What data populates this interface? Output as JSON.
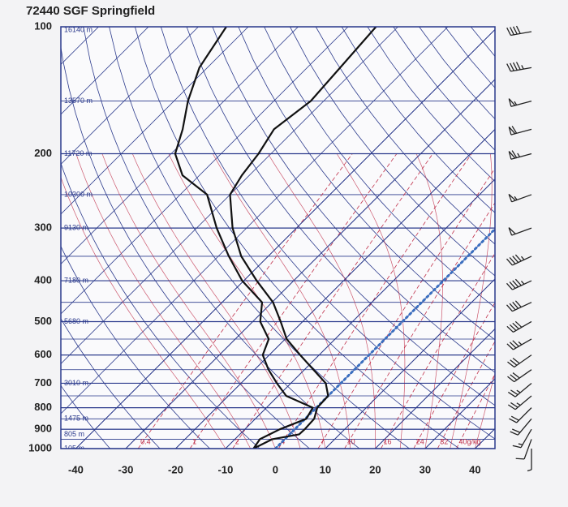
{
  "chart_data": {
    "type": "skewt",
    "title": "72440 SGF Springfield",
    "ylim": [
      1000,
      100
    ],
    "yticks": [
      100,
      200,
      300,
      400,
      500,
      600,
      700,
      800,
      900,
      1000
    ],
    "log_y": true,
    "xlim": [
      -43,
      44
    ],
    "xticks": [
      -40,
      -30,
      -20,
      -10,
      0,
      10,
      20,
      30,
      40
    ],
    "pressure": [
      1000,
      950,
      925,
      900,
      850,
      800,
      750,
      700,
      650,
      600,
      550,
      500,
      450,
      400,
      350,
      300,
      250,
      225,
      200,
      175,
      150,
      125,
      100
    ],
    "series": [
      {
        "name": "Temperature",
        "color": "#111111",
        "values": [
          -4.4,
          -2.5,
          1.9,
          2.0,
          1.8,
          0.2,
          0,
          -3,
          -8.2,
          -13.8,
          -19.7,
          -24.4,
          -29.8,
          -37.4,
          -45.4,
          -52.8,
          -60,
          -61.5,
          -62.5,
          -64.3,
          -62.6,
          -63.4,
          -64.4
        ]
      },
      {
        "name": "Dewpoint",
        "color": "#111111",
        "values": [
          -4.4,
          -5,
          -4,
          -3,
          0.2,
          -0.7,
          -8.4,
          -12.8,
          -17.2,
          -21.3,
          -23.3,
          -28.5,
          -32,
          -40.3,
          -47.9,
          -56,
          -64.6,
          -73.4,
          -79.2,
          -82.6,
          -87.2,
          -91.6,
          -94.4
        ]
      }
    ],
    "heights": {
      "pressure": [
        100,
        150,
        200,
        250,
        300,
        400,
        500,
        700,
        850,
        925,
        1000
      ],
      "labels": [
        "16140 m",
        "13570 m",
        "11720 m",
        "10300 m",
        "9130 m",
        "7180 m",
        "5680 m",
        "3010 m",
        "1475 m",
        "805 m",
        "105 m"
      ]
    },
    "mixing_ratio": {
      "values": [
        0.4,
        1,
        2,
        4,
        7,
        10,
        16,
        24,
        32,
        40
      ],
      "value_labels": [
        "0.4",
        "1",
        "2",
        "4",
        "7",
        "10",
        "16",
        "24",
        "32",
        "40g/kg"
      ],
      "color": "#c0304a"
    },
    "wind": {
      "pressure": [
        100,
        125,
        150,
        175,
        200,
        250,
        300,
        350,
        400,
        450,
        500,
        550,
        600,
        650,
        700,
        750,
        800,
        850,
        900,
        950,
        1000
      ],
      "speed": [
        40,
        45,
        55,
        60,
        65,
        55,
        50,
        45,
        45,
        40,
        40,
        35,
        30,
        30,
        25,
        25,
        20,
        20,
        15,
        10,
        5
      ],
      "direction": [
        260,
        260,
        255,
        255,
        255,
        250,
        250,
        245,
        245,
        245,
        240,
        240,
        235,
        235,
        230,
        230,
        225,
        220,
        210,
        200,
        180
      ]
    },
    "grid_color": "#2b3a8c",
    "freezing_color": "#3a6fc0"
  }
}
